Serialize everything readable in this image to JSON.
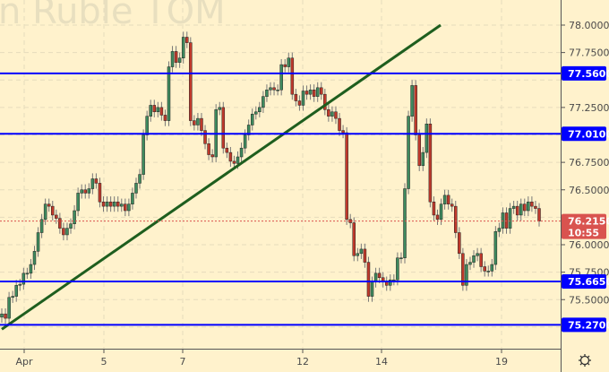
{
  "watermark": "n Ruble TOM",
  "colors": {
    "background": "#fff2cc",
    "up": "#3e8a5e",
    "down": "#c0392b",
    "level_line": "#0000ff",
    "trend_line": "#1e5e1e",
    "last_price": "#d9534f"
  },
  "chart_data": {
    "type": "candlestick",
    "title": "",
    "price_axis": {
      "ticks": [
        "78.0000",
        "77.7500",
        "77.5000",
        "77.2500",
        "77.0000",
        "76.7500",
        "76.5000",
        "76.2500",
        "76.0000",
        "75.7500",
        "75.5000",
        "75.2500"
      ],
      "ylim": [
        75.18,
        78.22
      ]
    },
    "time_axis": {
      "ticks": [
        "Apr",
        "5",
        "7",
        "12",
        "14",
        "19"
      ]
    },
    "closes": [
      75.37,
      75.33,
      75.52,
      75.53,
      75.63,
      75.64,
      75.74,
      75.74,
      75.82,
      75.94,
      76.11,
      76.23,
      76.37,
      76.35,
      76.27,
      76.24,
      76.15,
      76.09,
      76.15,
      76.19,
      76.31,
      76.47,
      76.5,
      76.47,
      76.51,
      76.6,
      76.56,
      76.39,
      76.35,
      76.39,
      76.35,
      76.39,
      76.35,
      76.37,
      76.31,
      76.37,
      76.47,
      76.56,
      76.64,
      77.0,
      77.17,
      77.27,
      77.21,
      77.25,
      77.18,
      77.13,
      77.62,
      77.76,
      77.66,
      77.7,
      77.89,
      77.84,
      77.13,
      77.09,
      77.15,
      77.04,
      76.92,
      76.82,
      76.8,
      77.23,
      77.25,
      76.88,
      76.84,
      76.76,
      76.74,
      76.8,
      76.88,
      77.0,
      77.09,
      77.19,
      77.21,
      77.25,
      77.35,
      77.41,
      77.43,
      77.41,
      77.41,
      77.64,
      77.62,
      77.7,
      77.37,
      77.31,
      77.27,
      77.4,
      77.37,
      77.41,
      77.35,
      77.43,
      77.37,
      77.23,
      77.17,
      77.21,
      77.15,
      77.04,
      77.02,
      76.23,
      76.2,
      75.9,
      75.92,
      75.96,
      75.84,
      75.53,
      75.66,
      75.74,
      75.7,
      75.66,
      75.63,
      75.68,
      75.68,
      75.88,
      75.88,
      76.51,
      77.17,
      77.45,
      77.0,
      76.72,
      76.84,
      77.1,
      76.39,
      76.27,
      76.23,
      76.37,
      76.45,
      76.37,
      76.35,
      76.11,
      75.92,
      75.63,
      75.82,
      75.84,
      75.9,
      75.92,
      75.8,
      75.76,
      75.76,
      75.82,
      76.12,
      76.15,
      76.29,
      76.15,
      76.33,
      76.35,
      76.27,
      76.37,
      76.31,
      76.39,
      76.35,
      76.33,
      76.215
    ],
    "horizontal_levels": [
      {
        "label": "77.5600",
        "value": 77.56
      },
      {
        "label": "77.0100",
        "value": 77.01
      },
      {
        "label": "75.6650",
        "value": 75.665
      },
      {
        "label": "75.2700",
        "value": 75.27
      }
    ],
    "trend_line": {
      "from": 75.23,
      "to": 78.0,
      "from_index": 0,
      "to_index": 120
    },
    "last_price": {
      "label": "76.2150",
      "value": 76.215,
      "countdown": "10:55"
    }
  },
  "settings_icon": "gear-icon"
}
